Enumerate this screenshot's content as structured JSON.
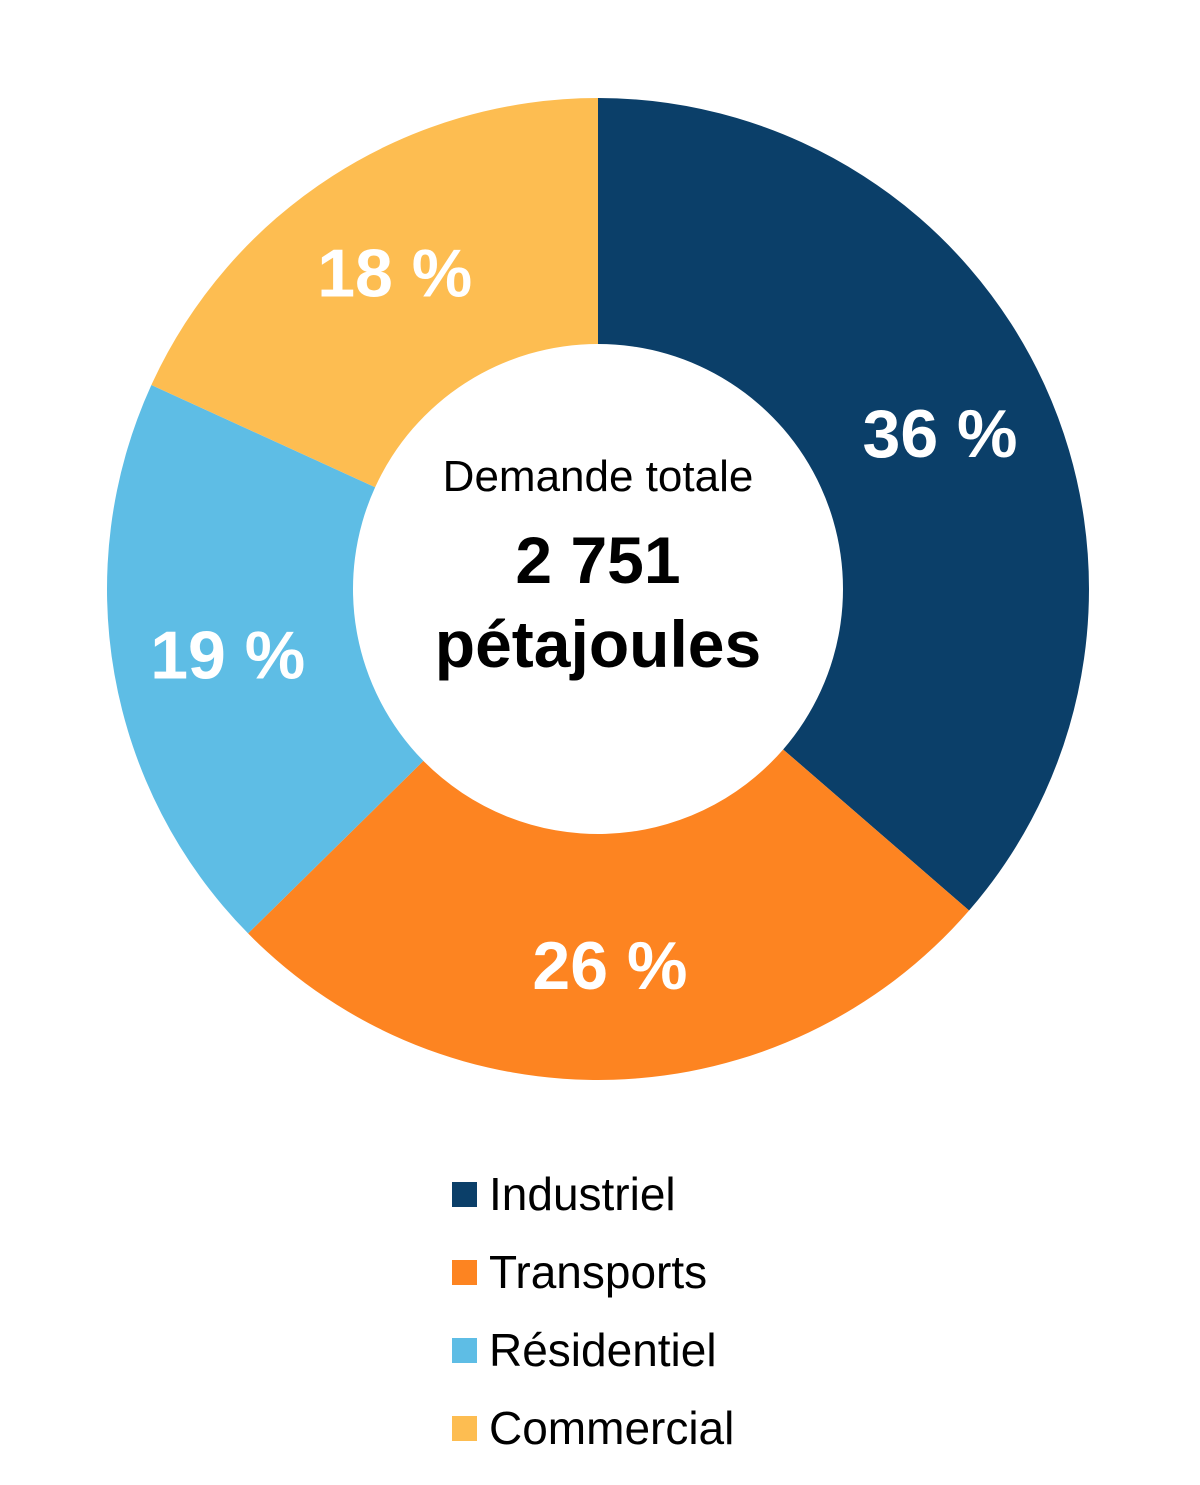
{
  "chart_data": {
    "type": "pie",
    "donut": true,
    "center": {
      "caption": "Demande totale",
      "total_line1": "2 751",
      "total_line2": "pétajoules"
    },
    "slices": [
      {
        "name": "Industriel",
        "value": 36,
        "label": "36 %",
        "color": "#0B3F69"
      },
      {
        "name": "Transports",
        "value": 26,
        "label": "26 %",
        "color": "#FD8421"
      },
      {
        "name": "Résidentiel",
        "value": 19,
        "label": "19 %",
        "color": "#5EBDE5"
      },
      {
        "name": "Commercial",
        "value": 18,
        "label": "18 %",
        "color": "#FDBD51"
      }
    ],
    "legend": {
      "position": "bottom-center",
      "items": [
        {
          "label": "Industriel",
          "color": "#0B3F69"
        },
        {
          "label": "Transports",
          "color": "#FD8421"
        },
        {
          "label": "Résidentiel",
          "color": "#5EBDE5"
        },
        {
          "label": "Commercial",
          "color": "#FDBD51"
        }
      ]
    },
    "start": "top",
    "direction": "clockwise"
  }
}
